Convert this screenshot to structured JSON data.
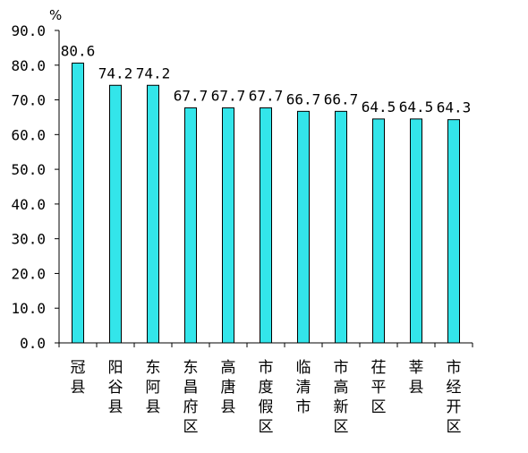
{
  "chart_data": {
    "type": "bar",
    "unit": "%",
    "categories": [
      "冠县",
      "阳谷县",
      "东阿县",
      "东昌府区",
      "高唐县",
      "市度假区",
      "临清市",
      "市高新区",
      "茌平区",
      "莘县",
      "市经开区"
    ],
    "values": [
      80.6,
      74.2,
      74.2,
      67.7,
      67.7,
      67.7,
      66.7,
      66.7,
      64.5,
      64.5,
      64.3
    ],
    "value_labels": [
      "80.6",
      "74.2",
      "74.2",
      "67.7",
      "67.7",
      "67.7",
      "66.7",
      "66.7",
      "64.5",
      "64.5",
      "64.3"
    ],
    "y_ticks": [
      "0.0",
      "10.0",
      "20.0",
      "30.0",
      "40.0",
      "50.0",
      "60.0",
      "70.0",
      "80.0",
      "90.0"
    ],
    "ylim": [
      0,
      90
    ],
    "grid": false,
    "bar_color": "#33e5ea",
    "bar_stroke": "#000000"
  }
}
